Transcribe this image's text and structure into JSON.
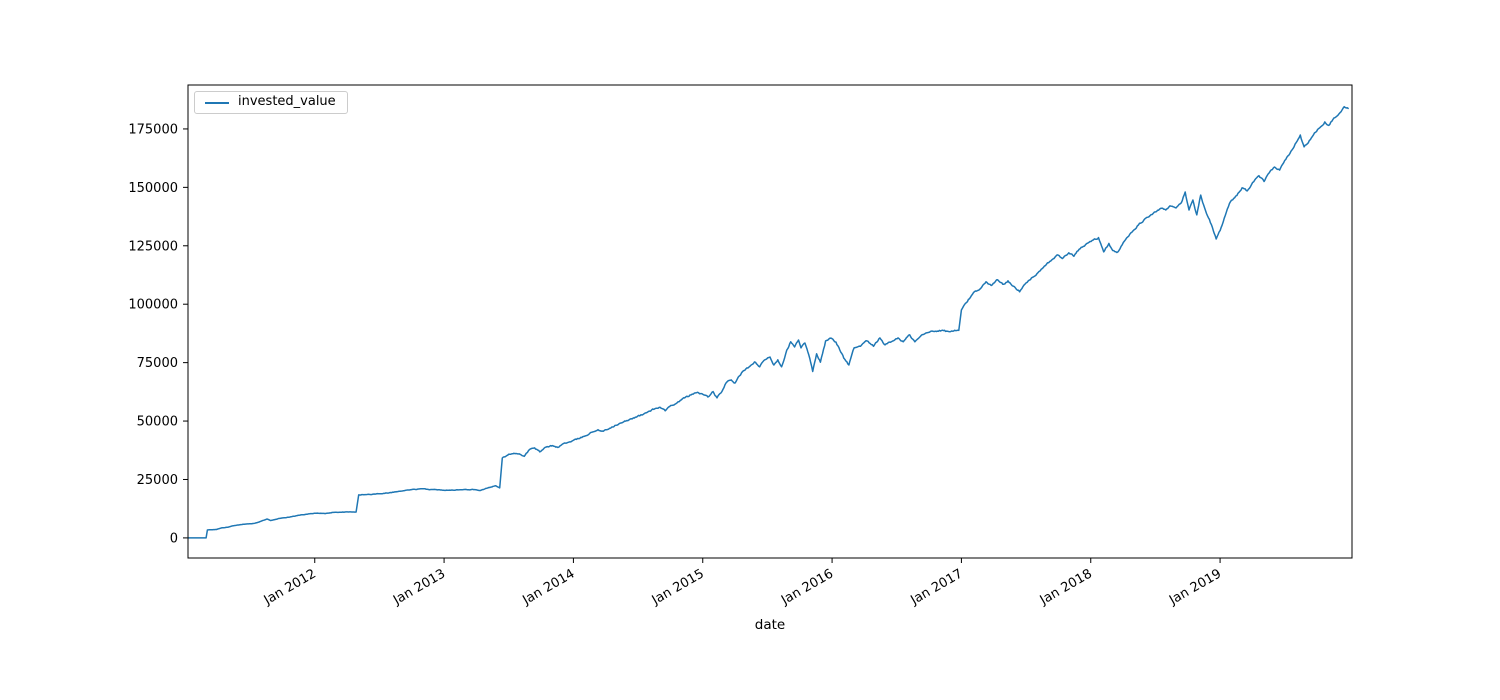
{
  "figure": {
    "background": "#ffffff",
    "title": ""
  },
  "chart_data": {
    "type": "line",
    "title": "",
    "xlabel": "date",
    "ylabel": "",
    "grid": false,
    "legend_position": "upper left",
    "line_color": "#1f77b4",
    "axis_color": "#000000",
    "xlim_years": [
      2011.02,
      2020.02
    ],
    "ylim": [
      -8600,
      193800
    ],
    "y_ticks": [
      0,
      25000,
      50000,
      75000,
      100000,
      125000,
      150000,
      175000
    ],
    "x_ticks": [
      {
        "label": "Jan 2012",
        "year": 2012
      },
      {
        "label": "Jan 2013",
        "year": 2013
      },
      {
        "label": "Jan 2014",
        "year": 2014
      },
      {
        "label": "Jan 2015",
        "year": 2015
      },
      {
        "label": "Jan 2016",
        "year": 2016
      },
      {
        "label": "Jan 2017",
        "year": 2017
      },
      {
        "label": "Jan 2018",
        "year": 2018
      },
      {
        "label": "Jan 2019",
        "year": 2019
      }
    ],
    "series": [
      {
        "name": "invested_value",
        "color": "#1f77b4",
        "points": [
          [
            2011.02,
            0
          ],
          [
            2011.16,
            0
          ],
          [
            2011.17,
            3400
          ],
          [
            2011.24,
            3600
          ],
          [
            2011.28,
            4300
          ],
          [
            2011.33,
            4600
          ],
          [
            2011.36,
            5100
          ],
          [
            2011.42,
            5600
          ],
          [
            2011.48,
            6000
          ],
          [
            2011.53,
            6200
          ],
          [
            2011.57,
            6800
          ],
          [
            2011.63,
            8100
          ],
          [
            2011.66,
            7400
          ],
          [
            2011.72,
            8300
          ],
          [
            2011.78,
            8700
          ],
          [
            2011.84,
            9300
          ],
          [
            2011.9,
            9900
          ],
          [
            2011.96,
            10300
          ],
          [
            2012.02,
            10600
          ],
          [
            2012.08,
            10400
          ],
          [
            2012.14,
            10900
          ],
          [
            2012.2,
            11000
          ],
          [
            2012.26,
            11100
          ],
          [
            2012.32,
            11100
          ],
          [
            2012.34,
            18400
          ],
          [
            2012.42,
            18600
          ],
          [
            2012.5,
            18900
          ],
          [
            2012.58,
            19400
          ],
          [
            2012.66,
            20000
          ],
          [
            2012.74,
            20600
          ],
          [
            2012.82,
            21000
          ],
          [
            2012.9,
            20700
          ],
          [
            2012.98,
            20500
          ],
          [
            2013.06,
            20500
          ],
          [
            2013.14,
            20600
          ],
          [
            2013.22,
            20800
          ],
          [
            2013.28,
            20300
          ],
          [
            2013.34,
            21400
          ],
          [
            2013.4,
            22300
          ],
          [
            2013.43,
            21400
          ],
          [
            2013.45,
            34200
          ],
          [
            2013.5,
            35800
          ],
          [
            2013.54,
            36200
          ],
          [
            2013.58,
            36000
          ],
          [
            2013.62,
            34900
          ],
          [
            2013.66,
            37800
          ],
          [
            2013.7,
            38500
          ],
          [
            2013.74,
            36800
          ],
          [
            2013.79,
            38900
          ],
          [
            2013.84,
            39500
          ],
          [
            2013.88,
            38700
          ],
          [
            2013.93,
            40600
          ],
          [
            2013.98,
            41100
          ],
          [
            2014.04,
            42500
          ],
          [
            2014.09,
            43600
          ],
          [
            2014.14,
            45200
          ],
          [
            2014.19,
            46300
          ],
          [
            2014.23,
            45600
          ],
          [
            2014.28,
            46900
          ],
          [
            2014.33,
            48200
          ],
          [
            2014.38,
            49400
          ],
          [
            2014.43,
            50500
          ],
          [
            2014.48,
            51700
          ],
          [
            2014.53,
            52600
          ],
          [
            2014.58,
            54100
          ],
          [
            2014.63,
            55300
          ],
          [
            2014.67,
            55900
          ],
          [
            2014.71,
            54400
          ],
          [
            2014.76,
            56700
          ],
          [
            2014.81,
            58300
          ],
          [
            2014.86,
            59900
          ],
          [
            2014.91,
            61200
          ],
          [
            2014.96,
            62300
          ],
          [
            2015.0,
            61500
          ],
          [
            2015.04,
            60300
          ],
          [
            2015.08,
            62600
          ],
          [
            2015.11,
            59900
          ],
          [
            2015.14,
            62000
          ],
          [
            2015.18,
            66300
          ],
          [
            2015.22,
            67600
          ],
          [
            2015.25,
            66300
          ],
          [
            2015.3,
            70600
          ],
          [
            2015.35,
            72700
          ],
          [
            2015.4,
            75300
          ],
          [
            2015.44,
            73200
          ],
          [
            2015.48,
            76200
          ],
          [
            2015.52,
            77400
          ],
          [
            2015.55,
            74000
          ],
          [
            2015.58,
            76200
          ],
          [
            2015.61,
            73200
          ],
          [
            2015.65,
            80400
          ],
          [
            2015.68,
            83900
          ],
          [
            2015.71,
            81700
          ],
          [
            2015.74,
            84700
          ],
          [
            2015.76,
            81300
          ],
          [
            2015.79,
            83400
          ],
          [
            2015.82,
            78300
          ],
          [
            2015.85,
            71200
          ],
          [
            2015.88,
            78800
          ],
          [
            2015.91,
            75200
          ],
          [
            2015.95,
            84300
          ],
          [
            2015.99,
            85500
          ],
          [
            2016.03,
            83800
          ],
          [
            2016.06,
            80400
          ],
          [
            2016.09,
            77000
          ],
          [
            2016.13,
            74000
          ],
          [
            2016.17,
            81300
          ],
          [
            2016.22,
            82000
          ],
          [
            2016.27,
            84300
          ],
          [
            2016.32,
            82000
          ],
          [
            2016.37,
            85600
          ],
          [
            2016.41,
            82600
          ],
          [
            2016.46,
            84000
          ],
          [
            2016.51,
            85600
          ],
          [
            2016.55,
            83900
          ],
          [
            2016.6,
            86900
          ],
          [
            2016.64,
            83900
          ],
          [
            2016.7,
            87000
          ],
          [
            2016.76,
            88300
          ],
          [
            2016.83,
            88800
          ],
          [
            2016.9,
            88300
          ],
          [
            2016.98,
            88800
          ],
          [
            2017.0,
            97500
          ],
          [
            2017.03,
            100300
          ],
          [
            2017.07,
            103000
          ],
          [
            2017.1,
            105300
          ],
          [
            2017.15,
            106800
          ],
          [
            2017.19,
            109600
          ],
          [
            2017.23,
            108000
          ],
          [
            2017.28,
            110500
          ],
          [
            2017.32,
            108500
          ],
          [
            2017.36,
            110000
          ],
          [
            2017.41,
            107500
          ],
          [
            2017.45,
            105300
          ],
          [
            2017.5,
            109100
          ],
          [
            2017.55,
            111500
          ],
          [
            2017.6,
            114000
          ],
          [
            2017.65,
            116500
          ],
          [
            2017.7,
            119000
          ],
          [
            2017.74,
            121100
          ],
          [
            2017.78,
            119500
          ],
          [
            2017.83,
            122000
          ],
          [
            2017.87,
            120500
          ],
          [
            2017.91,
            123500
          ],
          [
            2017.96,
            125500
          ],
          [
            2018.02,
            127500
          ],
          [
            2018.06,
            128500
          ],
          [
            2018.1,
            122400
          ],
          [
            2018.14,
            126000
          ],
          [
            2018.17,
            123000
          ],
          [
            2018.21,
            122400
          ],
          [
            2018.26,
            127000
          ],
          [
            2018.31,
            130500
          ],
          [
            2018.36,
            133500
          ],
          [
            2018.41,
            136000
          ],
          [
            2018.45,
            137400
          ],
          [
            2018.5,
            139500
          ],
          [
            2018.54,
            141000
          ],
          [
            2018.58,
            140300
          ],
          [
            2018.62,
            142000
          ],
          [
            2018.66,
            141200
          ],
          [
            2018.7,
            143400
          ],
          [
            2018.73,
            148000
          ],
          [
            2018.76,
            140300
          ],
          [
            2018.79,
            144600
          ],
          [
            2018.82,
            138200
          ],
          [
            2018.85,
            146700
          ],
          [
            2018.88,
            141200
          ],
          [
            2018.91,
            137000
          ],
          [
            2018.94,
            133000
          ],
          [
            2018.97,
            127900
          ],
          [
            2019.0,
            131500
          ],
          [
            2019.04,
            138000
          ],
          [
            2019.08,
            143800
          ],
          [
            2019.13,
            146500
          ],
          [
            2019.17,
            149800
          ],
          [
            2019.21,
            148500
          ],
          [
            2019.26,
            152400
          ],
          [
            2019.3,
            155000
          ],
          [
            2019.34,
            152500
          ],
          [
            2019.38,
            156200
          ],
          [
            2019.42,
            158700
          ],
          [
            2019.46,
            157400
          ],
          [
            2019.5,
            161500
          ],
          [
            2019.54,
            164500
          ],
          [
            2019.58,
            168500
          ],
          [
            2019.62,
            172400
          ],
          [
            2019.65,
            167300
          ],
          [
            2019.69,
            170000
          ],
          [
            2019.73,
            173300
          ],
          [
            2019.77,
            175500
          ],
          [
            2019.81,
            178000
          ],
          [
            2019.84,
            176500
          ],
          [
            2019.88,
            179700
          ],
          [
            2019.92,
            181500
          ],
          [
            2019.96,
            184500
          ],
          [
            2019.99,
            183800
          ]
        ]
      }
    ]
  }
}
